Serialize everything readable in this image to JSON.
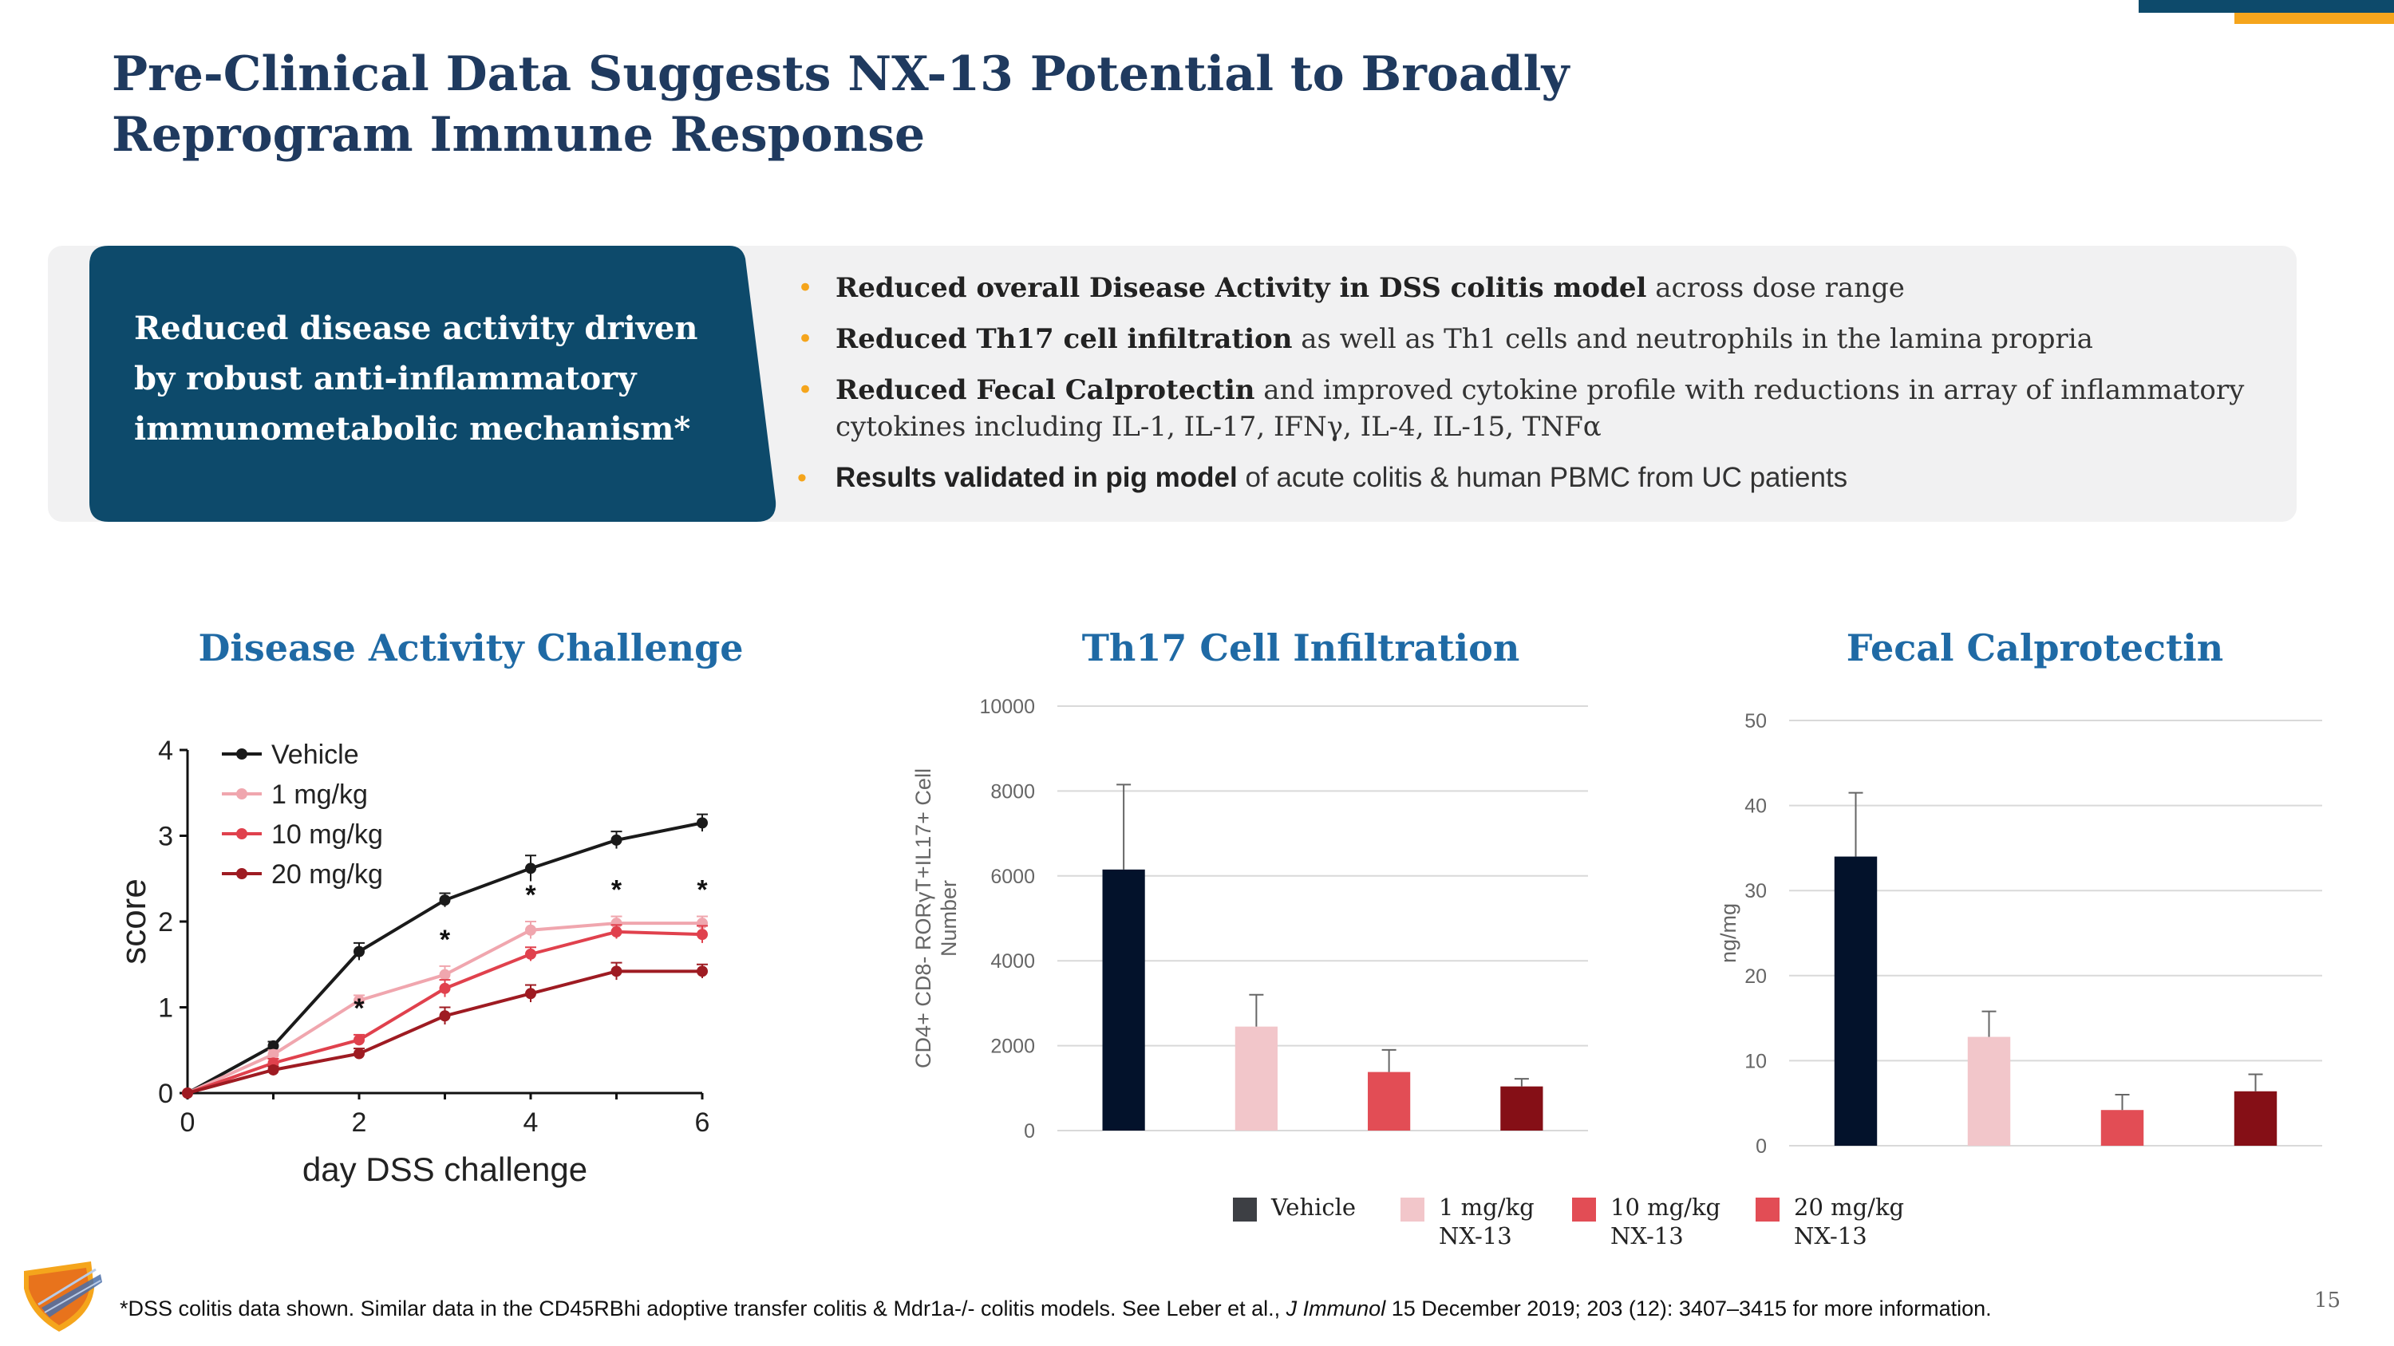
{
  "slide": {
    "title": "Pre-Clinical Data Suggests NX-13 Potential to Broadly Reprogram Immune Response",
    "page_number": "15",
    "accent_colors": {
      "navy": "#0d4a6b",
      "orange": "#f5a51c",
      "title": "#1f3a5f",
      "chart_title": "#1f6aa5"
    }
  },
  "callout": {
    "text": "Reduced disease activity driven by robust anti-inflammatory immunometabolic mechanism*"
  },
  "bullets": [
    {
      "bold": "Reduced overall Disease Activity in DSS colitis model",
      "rest": " across dose range"
    },
    {
      "bold": "Reduced Th17 cell infiltration",
      "rest": " as well as Th1 cells and neutrophils in the lamina propria"
    },
    {
      "bold": "Reduced Fecal Calprotectin",
      "rest": " and improved cytokine profile with reductions in array of inflammatory cytokines including IL-1, IL-17, IFNγ, IL-4, IL-15, TNFα"
    },
    {
      "bold": "Results validated in pig model",
      "rest": " of acute colitis & human PBMC from UC patients"
    }
  ],
  "legend": {
    "items": [
      {
        "line1": "Vehicle",
        "line2": "",
        "color": "#3d3f44"
      },
      {
        "line1": "1 mg/kg",
        "line2": "NX-13",
        "color": "#f2c6ca"
      },
      {
        "line1": "10 mg/kg",
        "line2": "NX-13",
        "color": "#e24d55"
      },
      {
        "line1": "20 mg/kg",
        "line2": "NX-13",
        "color": "#e24d55"
      }
    ]
  },
  "footnote": {
    "pre": "*DSS colitis data shown. Similar data in the CD45RBhi adoptive transfer colitis & Mdr1a-/- colitis models. See Leber et al., ",
    "journal": "J Immunol",
    "post": " 15 December 2019; 203 (12): 3407–3415 for more information."
  },
  "chart_data": [
    {
      "type": "line",
      "title": "Disease Activity Challenge",
      "xlabel": "day DSS challenge",
      "ylabel": "score",
      "x": [
        0,
        1,
        2,
        3,
        4,
        5,
        6
      ],
      "xticks": [
        "0",
        "2",
        "4",
        "6"
      ],
      "yticks": [
        "0",
        "1",
        "2",
        "3",
        "4"
      ],
      "xlim": [
        0,
        6
      ],
      "ylim": [
        0,
        4
      ],
      "significance_marker": "*",
      "significance": {
        "1 mg/kg": [
          3,
          4,
          5,
          6
        ],
        "10 mg/kg": [
          2
        ]
      },
      "series": [
        {
          "name": "Vehicle",
          "color": "#1a1a1a",
          "values": [
            0,
            0.55,
            1.65,
            2.25,
            2.62,
            2.95,
            3.15
          ],
          "err": [
            0,
            0.05,
            0.1,
            0.08,
            0.15,
            0.1,
            0.1
          ]
        },
        {
          "name": "1 mg/kg",
          "color": "#f0a6ae",
          "values": [
            0,
            0.45,
            1.08,
            1.38,
            1.9,
            1.98,
            1.98
          ],
          "err": [
            0,
            0.05,
            0.06,
            0.1,
            0.1,
            0.08,
            0.08
          ]
        },
        {
          "name": "10 mg/kg",
          "color": "#e0414d",
          "values": [
            0,
            0.35,
            0.62,
            1.22,
            1.62,
            1.88,
            1.85
          ],
          "err": [
            0,
            0.05,
            0.06,
            0.1,
            0.08,
            0.08,
            0.1
          ]
        },
        {
          "name": "20 mg/kg",
          "color": "#9e1b22",
          "values": [
            0,
            0.27,
            0.46,
            0.9,
            1.16,
            1.42,
            1.42
          ],
          "err": [
            0,
            0.04,
            0.06,
            0.1,
            0.1,
            0.1,
            0.08
          ]
        }
      ]
    },
    {
      "type": "bar",
      "title": "Th17 Cell Infiltration",
      "ylabel": "CD4+ CD8- RORγT+IL17+ Cell  Number",
      "categories": [
        "Vehicle",
        "1 mg/kg NX-13",
        "10 mg/kg NX-13",
        "20 mg/kg NX-13"
      ],
      "values": [
        6150,
        2450,
        1380,
        1040
      ],
      "err": [
        2000,
        750,
        520,
        180
      ],
      "colors": [
        "#03122b",
        "#f2c6ca",
        "#e24d55",
        "#850f16"
      ],
      "ylim": [
        0,
        10000
      ],
      "yticks": [
        "0",
        "2000",
        "4000",
        "6000",
        "8000",
        "10000"
      ]
    },
    {
      "type": "bar",
      "title": "Fecal Calprotectin",
      "ylabel": "ng/mg",
      "categories": [
        "Vehicle",
        "1 mg/kg NX-13",
        "10 mg/kg NX-13",
        "20 mg/kg NX-13"
      ],
      "values": [
        34,
        12.8,
        4.2,
        6.4
      ],
      "err": [
        7.5,
        3,
        1.8,
        2
      ],
      "colors": [
        "#03122b",
        "#f2c6ca",
        "#e24d55",
        "#850f16"
      ],
      "ylim": [
        0,
        50
      ],
      "yticks": [
        "0",
        "10",
        "20",
        "30",
        "40",
        "50"
      ]
    }
  ]
}
